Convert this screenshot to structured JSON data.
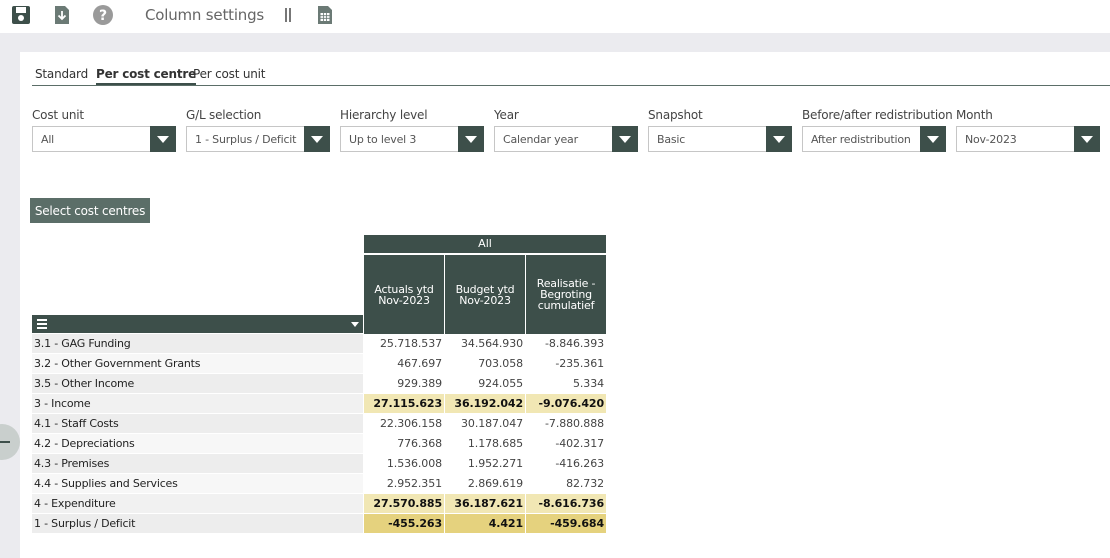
{
  "toolbar": {
    "title": "Column settings",
    "icons": [
      "save-icon",
      "download-icon",
      "help-icon",
      "column-divider-icon",
      "spreadsheet-icon"
    ]
  },
  "tabs": [
    {
      "label": "Standard",
      "active": false
    },
    {
      "label": "Per cost centre",
      "active": true
    },
    {
      "label": "Per cost unit",
      "active": false
    }
  ],
  "filters": [
    {
      "label": "Cost unit",
      "value": "All"
    },
    {
      "label": "G/L selection",
      "value": "1 - Surplus / Deficit"
    },
    {
      "label": "Hierarchy level",
      "value": "Up to level 3"
    },
    {
      "label": "Year",
      "value": "Calendar year"
    },
    {
      "label": "Snapshot",
      "value": "Basic"
    },
    {
      "label": "Before/after redistribution",
      "value": "After redistribution"
    },
    {
      "label": "Month",
      "value": "Nov-2023"
    }
  ],
  "select_button": "Select cost centres",
  "table": {
    "group_header": "All",
    "columns": [
      "Actuals ytd Nov-2023",
      "Budget ytd Nov-2023",
      "Realisatie - Begroting cumulatief"
    ],
    "rows": [
      {
        "label": "3.1 - GAG Funding",
        "values": [
          "25.718.537",
          "34.564.930",
          "-8.846.393"
        ],
        "kind": "normal"
      },
      {
        "label": "3.2 - Other Government Grants",
        "values": [
          "467.697",
          "703.058",
          "-235.361"
        ],
        "kind": "normal"
      },
      {
        "label": "3.5 - Other Income",
        "values": [
          "929.389",
          "924.055",
          "5.334"
        ],
        "kind": "normal"
      },
      {
        "label": "3 - Income",
        "values": [
          "27.115.623",
          "36.192.042",
          "-9.076.420"
        ],
        "kind": "total"
      },
      {
        "label": "4.1 - Staff Costs",
        "values": [
          "22.306.158",
          "30.187.047",
          "-7.880.888"
        ],
        "kind": "normal"
      },
      {
        "label": "4.2 - Depreciations",
        "values": [
          "776.368",
          "1.178.685",
          "-402.317"
        ],
        "kind": "normal"
      },
      {
        "label": "4.3 - Premises",
        "values": [
          "1.536.008",
          "1.952.271",
          "-416.263"
        ],
        "kind": "normal"
      },
      {
        "label": "4.4 - Supplies and Services",
        "values": [
          "2.952.351",
          "2.869.619",
          "82.732"
        ],
        "kind": "normal"
      },
      {
        "label": "4 - Expenditure",
        "values": [
          "27.570.885",
          "36.187.621",
          "-8.616.736"
        ],
        "kind": "total"
      },
      {
        "label": "1 - Surplus / Deficit",
        "values": [
          "-455.263",
          "4.421",
          "-459.684"
        ],
        "kind": "grand"
      }
    ]
  },
  "colors": {
    "header": "#3d4f4a",
    "button": "#5b6e68",
    "total": "#f1e7b4",
    "grand": "#e5d27e"
  }
}
